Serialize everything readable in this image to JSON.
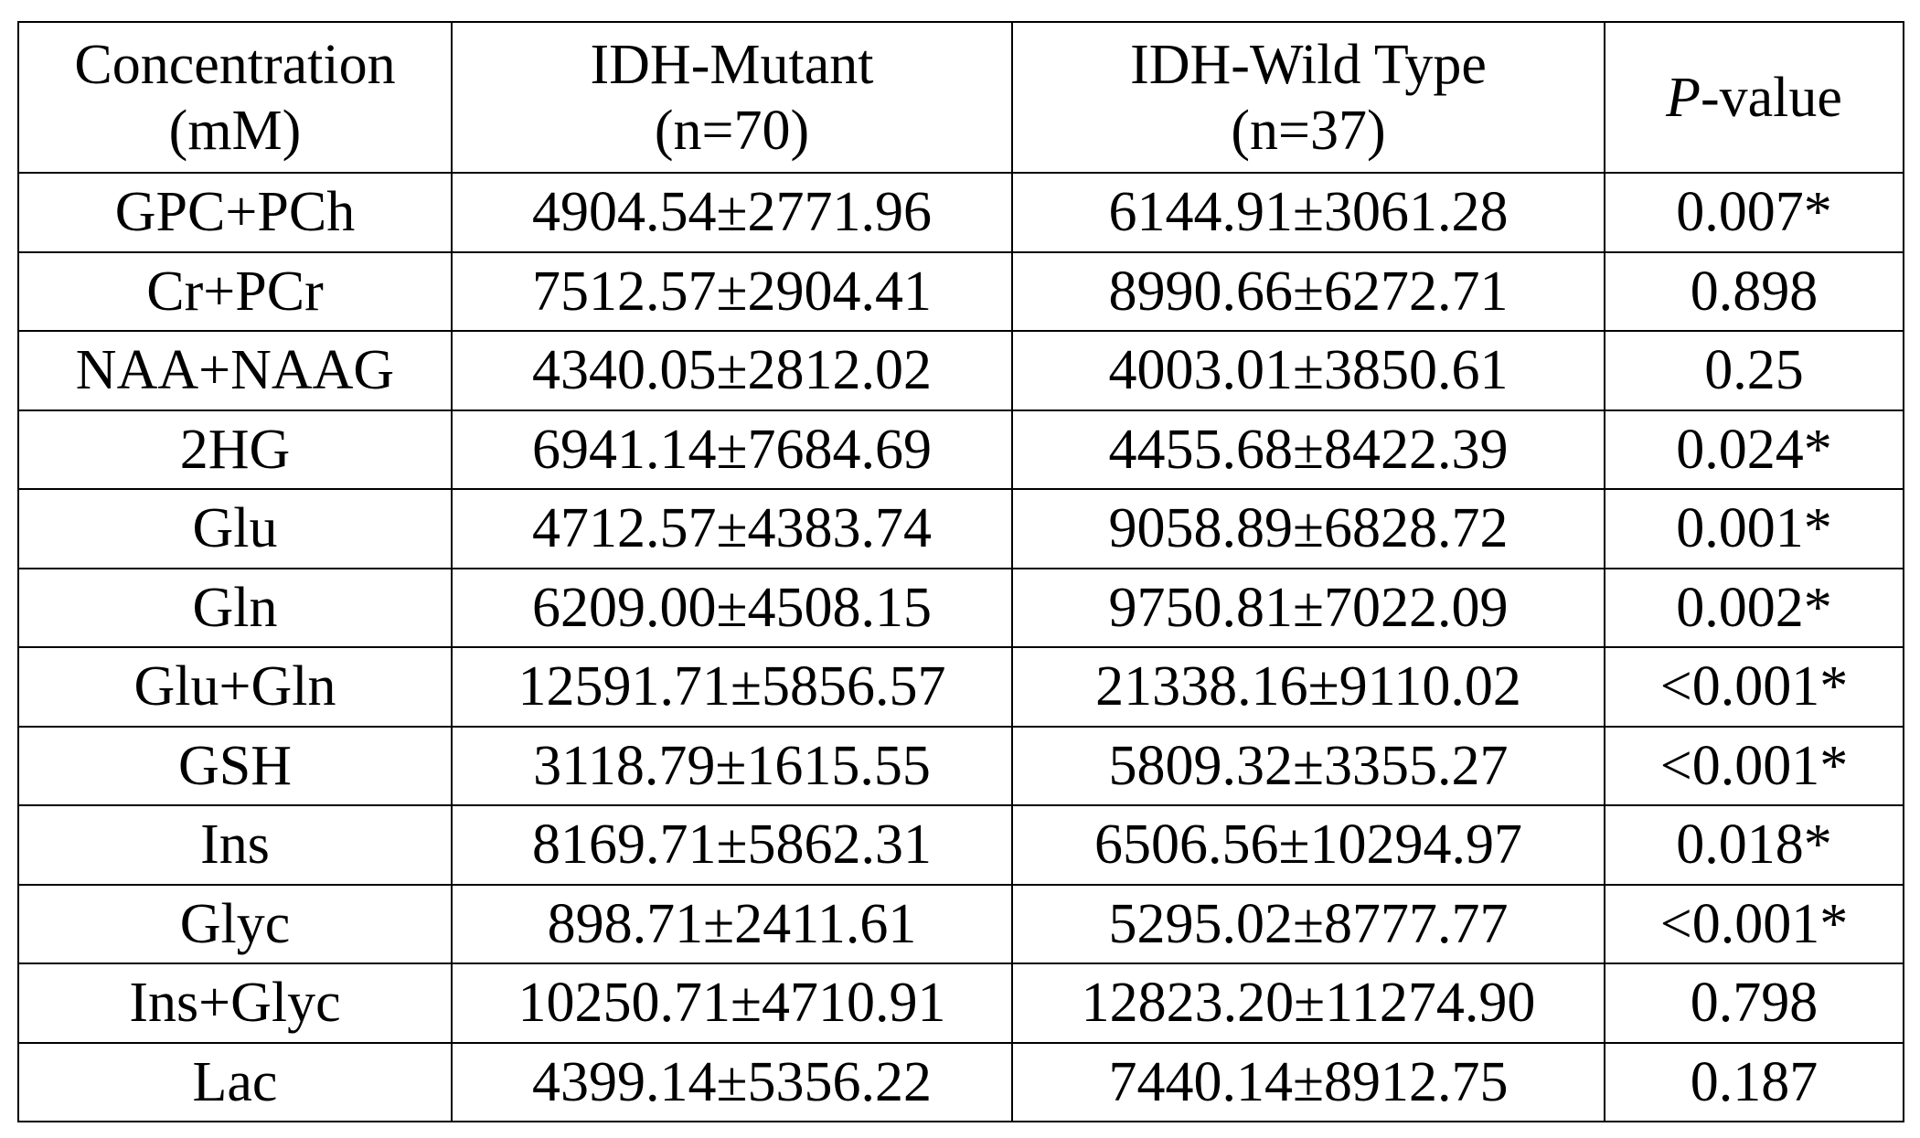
{
  "table": {
    "header": [
      [
        "Concentration",
        "(mM)"
      ],
      [
        "IDH-Mutant",
        "(n=70)"
      ],
      [
        "IDH-Wild Type",
        "(n=37)"
      ]
    ],
    "pvalue_header": {
      "italic": "P",
      "rest": "-value"
    },
    "rows": [
      [
        "GPC+PCh",
        "4904.54±2771.96",
        "6144.91±3061.28",
        "0.007*"
      ],
      [
        "Cr+PCr",
        "7512.57±2904.41",
        "8990.66±6272.71",
        "0.898"
      ],
      [
        "NAA+NAAG",
        "4340.05±2812.02",
        "4003.01±3850.61",
        "0.25"
      ],
      [
        "2HG",
        "6941.14±7684.69",
        "4455.68±8422.39",
        "0.024*"
      ],
      [
        "Glu",
        "4712.57±4383.74",
        "9058.89±6828.72",
        "0.001*"
      ],
      [
        "Gln",
        "6209.00±4508.15",
        "9750.81±7022.09",
        "0.002*"
      ],
      [
        "Glu+Gln",
        "12591.71±5856.57",
        "21338.16±9110.02",
        "<0.001*"
      ],
      [
        "GSH",
        "3118.79±1615.55",
        "5809.32±3355.27",
        "<0.001*"
      ],
      [
        "Ins",
        "8169.71±5862.31",
        "6506.56±10294.97",
        "0.018*"
      ],
      [
        "Glyc",
        "898.71±2411.61",
        "5295.02±8777.77",
        "<0.001*"
      ],
      [
        "Ins+Glyc",
        "10250.71±4710.91",
        "12823.20±11274.90",
        "0.798"
      ],
      [
        "Lac",
        "4399.14±5356.22",
        "7440.14±8912.75",
        "0.187"
      ]
    ]
  }
}
